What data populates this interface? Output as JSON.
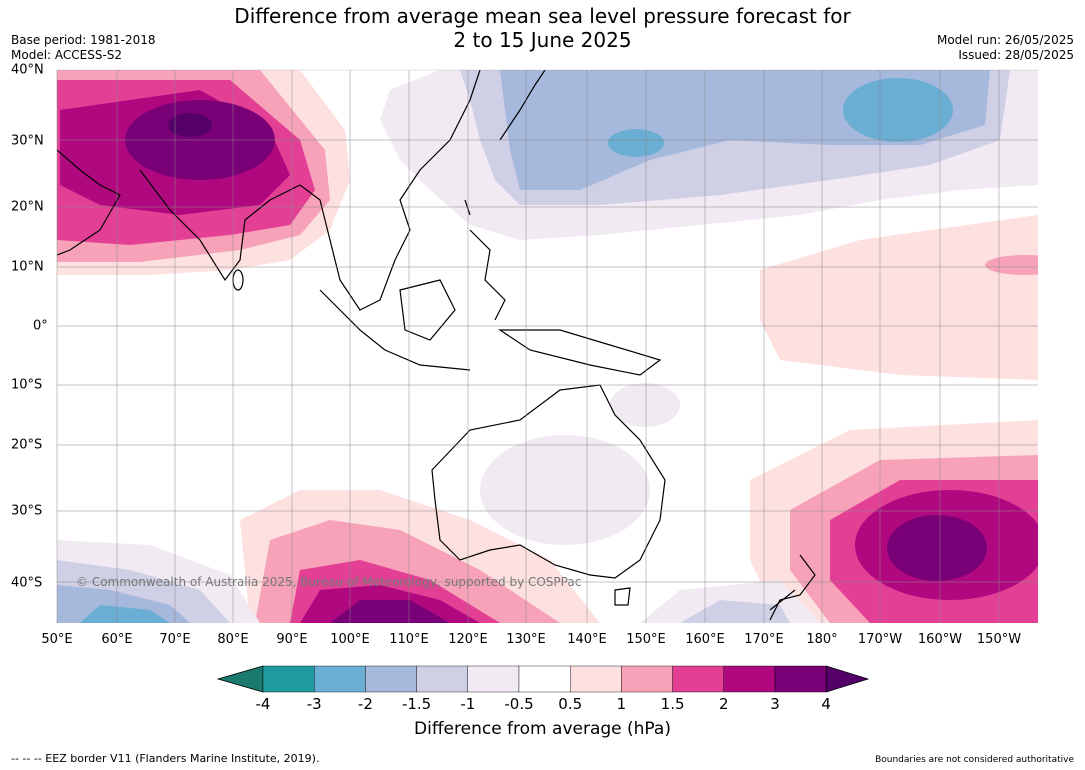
{
  "title_line1": "Difference from average mean sea level pressure forecast for",
  "title_line2": "2 to 15 June 2025",
  "meta_left": [
    "Base period: 1981-2018",
    "Model: ACCESS-S2"
  ],
  "meta_right": [
    "Model run: 26/05/2025",
    "Issued: 28/05/2025"
  ],
  "lat_labels": [
    "40°N",
    "30°N",
    "20°N",
    "10°N",
    "0°",
    "10°S",
    "20°S",
    "30°S",
    "40°S"
  ],
  "lon_labels": [
    "50°E",
    "60°E",
    "70°E",
    "80°E",
    "90°E",
    "100°E",
    "110°E",
    "120°E",
    "130°E",
    "140°E",
    "150°E",
    "160°E",
    "170°E",
    "180°",
    "170°W",
    "160°W",
    "150°W"
  ],
  "copyright": "© Commonwealth of Australia 2025, Bureau of Meteorology, supported by COSPPac",
  "colorbar": {
    "ticks": [
      "-4",
      "-3",
      "-2",
      "-1.5",
      "-1",
      "-0.5",
      "0.5",
      "1",
      "1.5",
      "2",
      "3",
      "4"
    ],
    "colors": [
      "#1b7a6e",
      "#1f9ba0",
      "#6aaed4",
      "#a6b8dc",
      "#cfcfe6",
      "#f1eaf3",
      "#ffffff",
      "#fde0e0",
      "#f7a2b8",
      "#e23f95",
      "#b0087f",
      "#7a0078",
      "#540068"
    ],
    "label": "Difference from average (hPa)"
  },
  "footer_left": "--  --  -- EEZ border V11 (Flanders Marine Institute, 2019).",
  "footer_right": "Boundaries are not considered authoritative"
}
